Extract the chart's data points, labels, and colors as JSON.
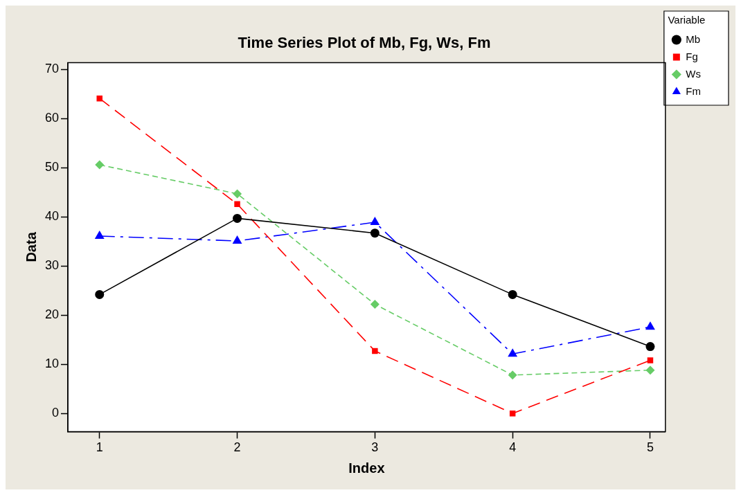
{
  "chart_data": {
    "type": "line",
    "title": "Time Series Plot of Mb, Fg, Ws, Fm",
    "xlabel": "Index",
    "ylabel": "Data",
    "legend_title": "Variable",
    "legend": "top right",
    "grid": false,
    "x": [
      1,
      2,
      3,
      4,
      5
    ],
    "xlim": [
      0.77,
      5.11
    ],
    "xticks": [
      1,
      2,
      3,
      4,
      5
    ],
    "ylim": [
      -3.7,
      71.4
    ],
    "yticks": [
      0,
      10,
      20,
      30,
      40,
      50,
      60,
      70
    ],
    "series": [
      {
        "name": "Mb",
        "color": "#000000",
        "marker": "circle",
        "line_style": "solid",
        "values": [
          24.2,
          39.7,
          36.7,
          24.2,
          13.6
        ]
      },
      {
        "name": "Fg",
        "color": "#ff0000",
        "marker": "square",
        "line_style": "dashed",
        "values": [
          64.1,
          42.6,
          12.7,
          0,
          10.8
        ]
      },
      {
        "name": "Ws",
        "color": "#66cc66",
        "marker": "diamond",
        "line_style": "dashed",
        "values": [
          50.6,
          44.7,
          22.2,
          7.8,
          8.8
        ]
      },
      {
        "name": "Fm",
        "color": "#0000ff",
        "marker": "triangle",
        "line_style": "dashed",
        "values": [
          36.1,
          35.1,
          38.9,
          12.1,
          17.6
        ]
      }
    ]
  }
}
